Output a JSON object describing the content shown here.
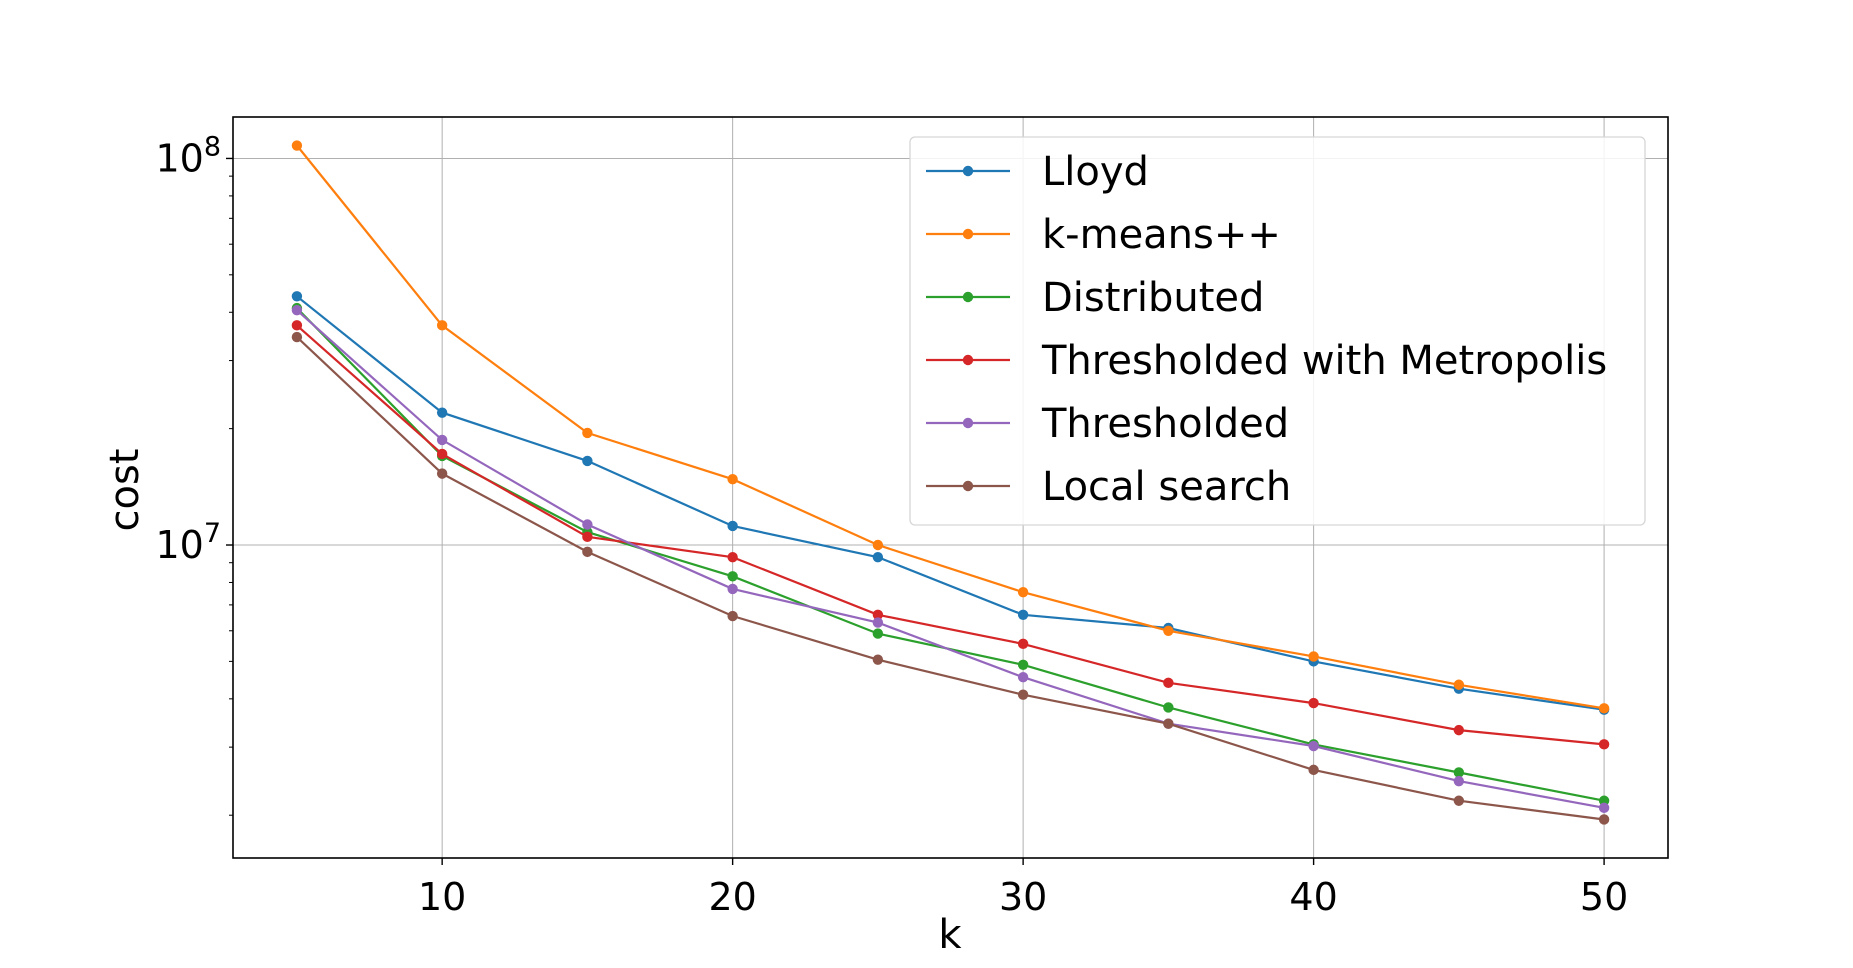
{
  "chart_data": {
    "type": "line",
    "title": "",
    "xlabel": "k",
    "ylabel": "cost",
    "x": [
      5,
      10,
      15,
      20,
      25,
      30,
      35,
      40,
      45,
      50
    ],
    "xlim": [
      2.8,
      52.2
    ],
    "ylim": [
      1550000,
      128000000
    ],
    "yscale": "log",
    "x_ticks": [
      10,
      20,
      30,
      40,
      50
    ],
    "x_tick_labels": [
      "10",
      "20",
      "30",
      "40",
      "50"
    ],
    "y_ticks": [
      {
        "value": 10000000,
        "base": "10",
        "exponent": "7"
      },
      {
        "value": 100000000,
        "base": "10",
        "exponent": "8"
      }
    ],
    "grid": true,
    "legend_position": "top-right",
    "series": [
      {
        "name": "Lloyd",
        "color": "#1f77b4",
        "values": [
          44000000,
          22000000,
          16500000,
          11200000,
          9300000,
          6600000,
          6100000,
          5000000,
          4250000,
          3750000
        ]
      },
      {
        "name": "k-means++",
        "color": "#ff7f0e",
        "values": [
          108000000,
          37000000,
          19500000,
          14800000,
          10000000,
          7550000,
          6000000,
          5150000,
          4350000,
          3780000
        ]
      },
      {
        "name": "Distributed",
        "color": "#2ca02c",
        "values": [
          41000000,
          17000000,
          10800000,
          8300000,
          5900000,
          4900000,
          3800000,
          3050000,
          2580000,
          2180000
        ]
      },
      {
        "name": "Thresholded with Metropolis",
        "color": "#d62728",
        "values": [
          37000000,
          17200000,
          10500000,
          9300000,
          6600000,
          5550000,
          4400000,
          3900000,
          3320000,
          3050000
        ]
      },
      {
        "name": "Thresholded",
        "color": "#9467bd",
        "values": [
          40500000,
          18700000,
          11300000,
          7700000,
          6300000,
          4550000,
          3450000,
          3020000,
          2450000,
          2090000
        ]
      },
      {
        "name": "Local search",
        "color": "#8c564b",
        "values": [
          34500000,
          15300000,
          9600000,
          6550000,
          5050000,
          4100000,
          3450000,
          2620000,
          2180000,
          1950000
        ]
      }
    ]
  }
}
